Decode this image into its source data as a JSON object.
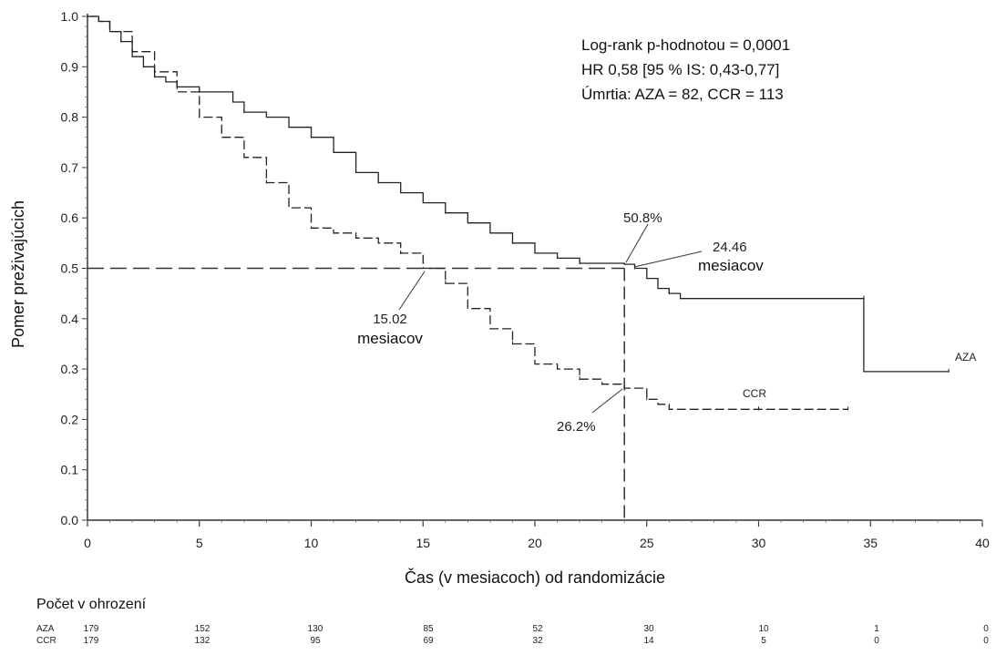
{
  "chart_data": {
    "type": "line",
    "subtype": "kaplan-meier",
    "xlabel": "Čas (v mesiacoch) od randomizácie",
    "ylabel": "Pomer preživajúcich",
    "xlim": [
      0,
      40
    ],
    "ylim": [
      0,
      1.0
    ],
    "x_ticks": [
      "0",
      "5",
      "10",
      "15",
      "20",
      "25",
      "30",
      "35",
      "40"
    ],
    "y_ticks": [
      "0.0",
      "0.1",
      "0.2",
      "0.3",
      "0.4",
      "0.5",
      "0.6",
      "0.7",
      "0.8",
      "0.9",
      "1.0"
    ],
    "grid": false,
    "annotation_box": [
      "Log-rank p-hodnotou = 0,0001",
      "HR 0,58 [95 % IS: 0,43-0,77]",
      "Úmrtia: AZA = 82, CCR = 113"
    ],
    "reference_lines": {
      "y": 0.5,
      "x": 24
    },
    "callouts": {
      "aza_pct": "50.8%",
      "ccr_pct": "26.2%",
      "aza_median_value": "24.46",
      "aza_median_unit": "mesiacov",
      "ccr_median_value": "15.02",
      "ccr_median_unit": "mesiacov"
    },
    "series": [
      {
        "name": "AZA",
        "style": "solid",
        "points": [
          [
            0,
            1.0
          ],
          [
            0.5,
            0.99
          ],
          [
            1,
            0.97
          ],
          [
            1.5,
            0.95
          ],
          [
            2,
            0.92
          ],
          [
            2.5,
            0.9
          ],
          [
            3,
            0.88
          ],
          [
            3.5,
            0.87
          ],
          [
            4,
            0.86
          ],
          [
            5,
            0.85
          ],
          [
            6,
            0.85
          ],
          [
            6.5,
            0.83
          ],
          [
            7,
            0.81
          ],
          [
            8,
            0.8
          ],
          [
            9,
            0.78
          ],
          [
            10,
            0.76
          ],
          [
            11,
            0.73
          ],
          [
            12,
            0.69
          ],
          [
            13,
            0.67
          ],
          [
            14,
            0.65
          ],
          [
            15,
            0.63
          ],
          [
            16,
            0.61
          ],
          [
            17,
            0.59
          ],
          [
            18,
            0.57
          ],
          [
            19,
            0.55
          ],
          [
            20,
            0.53
          ],
          [
            21,
            0.52
          ],
          [
            22,
            0.51
          ],
          [
            23,
            0.51
          ],
          [
            24,
            0.508
          ],
          [
            24.46,
            0.5
          ],
          [
            25,
            0.48
          ],
          [
            25.5,
            0.46
          ],
          [
            26,
            0.45
          ],
          [
            26.5,
            0.44
          ],
          [
            30,
            0.44
          ],
          [
            34.7,
            0.44
          ],
          [
            34.7,
            0.295
          ],
          [
            38.5,
            0.295
          ]
        ]
      },
      {
        "name": "CCR",
        "style": "dashed",
        "points": [
          [
            0,
            1.0
          ],
          [
            0.5,
            0.99
          ],
          [
            1,
            0.97
          ],
          [
            2,
            0.93
          ],
          [
            3,
            0.89
          ],
          [
            4,
            0.85
          ],
          [
            5,
            0.8
          ],
          [
            6,
            0.76
          ],
          [
            7,
            0.72
          ],
          [
            8,
            0.67
          ],
          [
            9,
            0.62
          ],
          [
            10,
            0.58
          ],
          [
            11,
            0.57
          ],
          [
            12,
            0.56
          ],
          [
            13,
            0.55
          ],
          [
            14,
            0.53
          ],
          [
            15,
            0.51
          ],
          [
            15.02,
            0.5
          ],
          [
            16,
            0.47
          ],
          [
            17,
            0.42
          ],
          [
            18,
            0.38
          ],
          [
            19,
            0.35
          ],
          [
            20,
            0.31
          ],
          [
            21,
            0.3
          ],
          [
            22,
            0.28
          ],
          [
            23,
            0.27
          ],
          [
            24,
            0.262
          ],
          [
            25,
            0.24
          ],
          [
            25.5,
            0.23
          ],
          [
            26,
            0.22
          ],
          [
            30,
            0.22
          ],
          [
            34,
            0.22
          ]
        ]
      }
    ],
    "series_labels": [
      "AZA",
      "CCR"
    ]
  },
  "risk_table": {
    "title": "Počet v ohrození",
    "rows": [
      {
        "label": "AZA",
        "values": [
          "179",
          "152",
          "130",
          "85",
          "52",
          "30",
          "10",
          "1",
          "0"
        ]
      },
      {
        "label": "CCR",
        "values": [
          "179",
          "132",
          "95",
          "69",
          "32",
          "14",
          "5",
          "0",
          "0"
        ]
      }
    ]
  }
}
